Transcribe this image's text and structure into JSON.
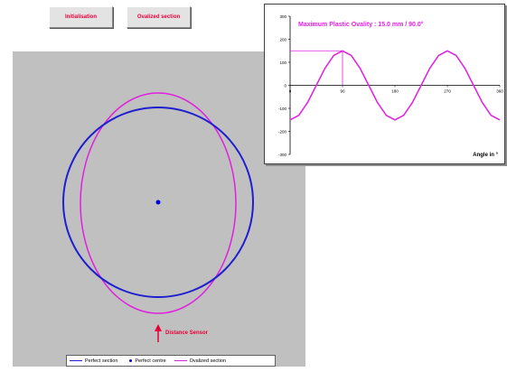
{
  "toolbar": {
    "init_label": "Initialisation",
    "ovalize_label": "Ovalized section"
  },
  "section_view": {
    "sensor_label": "Distance Sensor",
    "colors": {
      "perfect_section": "#1f1fd0",
      "ovalized_section": "#e020e0",
      "centre": "#0000e0",
      "sensor": "#e8003c",
      "background": "#c0c0c0"
    }
  },
  "legend": {
    "items": [
      {
        "label": "Perfect section",
        "kind": "line",
        "color": "#1f1fd0"
      },
      {
        "label": "Perfect centre",
        "kind": "dot",
        "color": "#0000e0"
      },
      {
        "label": "Ovalized section",
        "kind": "line",
        "color": "#e020e0"
      }
    ]
  },
  "chart_data": {
    "type": "line",
    "title": "Maximum Plastic Ovality : 15.0 mm / 90.0°",
    "xlabel": "Angle in °",
    "ylabel": "",
    "xlim": [
      0,
      360
    ],
    "ylim": [
      -300,
      300
    ],
    "x_ticks": [
      0,
      90,
      180,
      270,
      360
    ],
    "y_ticks": [
      300,
      200,
      100,
      0,
      -100,
      -200,
      -300
    ],
    "series": [
      {
        "color": "#e020e0",
        "x": [
          0,
          15,
          30,
          45,
          60,
          75,
          90,
          105,
          120,
          135,
          150,
          165,
          180,
          195,
          210,
          225,
          240,
          255,
          270,
          285,
          300,
          315,
          330,
          345,
          360
        ],
        "y": [
          -150,
          -130,
          -75,
          0,
          75,
          130,
          150,
          130,
          75,
          0,
          -75,
          -130,
          -150,
          -130,
          -75,
          0,
          75,
          130,
          150,
          130,
          75,
          0,
          -75,
          -130,
          -150
        ]
      }
    ],
    "marker": {
      "x": 90,
      "y": 150
    },
    "grid": false
  }
}
